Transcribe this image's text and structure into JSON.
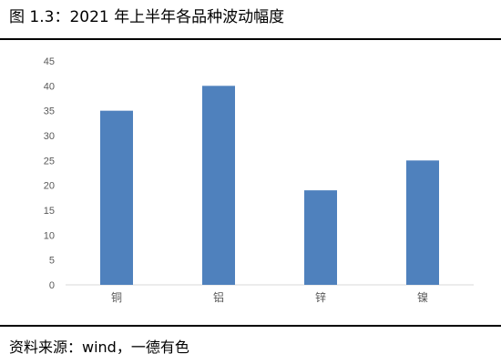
{
  "title": "图 1.3：2021 年上半年各品种波动幅度",
  "source": "资料来源：wind，一德有色",
  "colors": {
    "bar": "#4f81bd",
    "axis": "#d9d9d9",
    "tick_text": "#595959",
    "rule": "#000000"
  },
  "chart_data": {
    "type": "bar",
    "title": "",
    "xlabel": "",
    "ylabel": "",
    "categories": [
      "铜",
      "铝",
      "锌",
      "镍"
    ],
    "values": [
      35,
      40,
      19,
      25
    ],
    "ylim": [
      0,
      45
    ],
    "yticks": [
      0,
      5,
      10,
      15,
      20,
      25,
      30,
      35,
      40,
      45
    ],
    "grid": false,
    "legend": "none"
  }
}
